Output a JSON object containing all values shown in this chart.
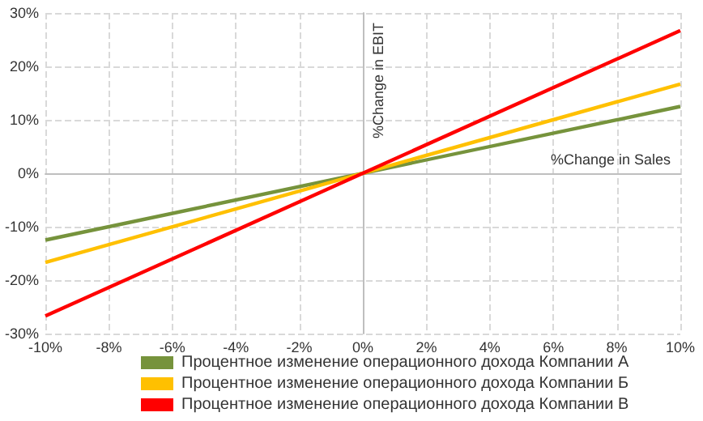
{
  "chart_data": {
    "type": "line",
    "xlabel": "%Change in Sales",
    "ylabel": "%Change in EBIT",
    "x": [
      -10,
      10
    ],
    "series": [
      {
        "name": "Процентное изменение операционного дохода Компании А",
        "color": "#76933c",
        "values": [
          -12.5,
          12.5
        ]
      },
      {
        "name": "Процентное изменение операционного дохода Компании Б",
        "color": "#ffc000",
        "values": [
          -16.7,
          16.7
        ]
      },
      {
        "name": "Процентное изменение операционного дохода Компании В",
        "color": "#ff0000",
        "values": [
          -26.7,
          26.7
        ]
      }
    ],
    "xlim": [
      -10,
      10
    ],
    "ylim": [
      -30,
      30
    ],
    "xticks": [
      {
        "value": -10,
        "label": "-10%"
      },
      {
        "value": -8,
        "label": "-8%"
      },
      {
        "value": -6,
        "label": "-6%"
      },
      {
        "value": -4,
        "label": "-4%"
      },
      {
        "value": -2,
        "label": "-2%"
      },
      {
        "value": 0,
        "label": "0%"
      },
      {
        "value": 2,
        "label": "2%"
      },
      {
        "value": 4,
        "label": "4%"
      },
      {
        "value": 6,
        "label": "6%"
      },
      {
        "value": 8,
        "label": "8%"
      },
      {
        "value": 10,
        "label": "10%"
      }
    ],
    "yticks": [
      {
        "value": -30,
        "label": "-30%"
      },
      {
        "value": -20,
        "label": "-20%"
      },
      {
        "value": -10,
        "label": "-10%"
      },
      {
        "value": 0,
        "label": "0%"
      },
      {
        "value": 10,
        "label": "10%"
      },
      {
        "value": 20,
        "label": "20%"
      },
      {
        "value": 30,
        "label": "30%"
      }
    ],
    "grid": true,
    "legend": "bottom",
    "line_style": "solid"
  }
}
